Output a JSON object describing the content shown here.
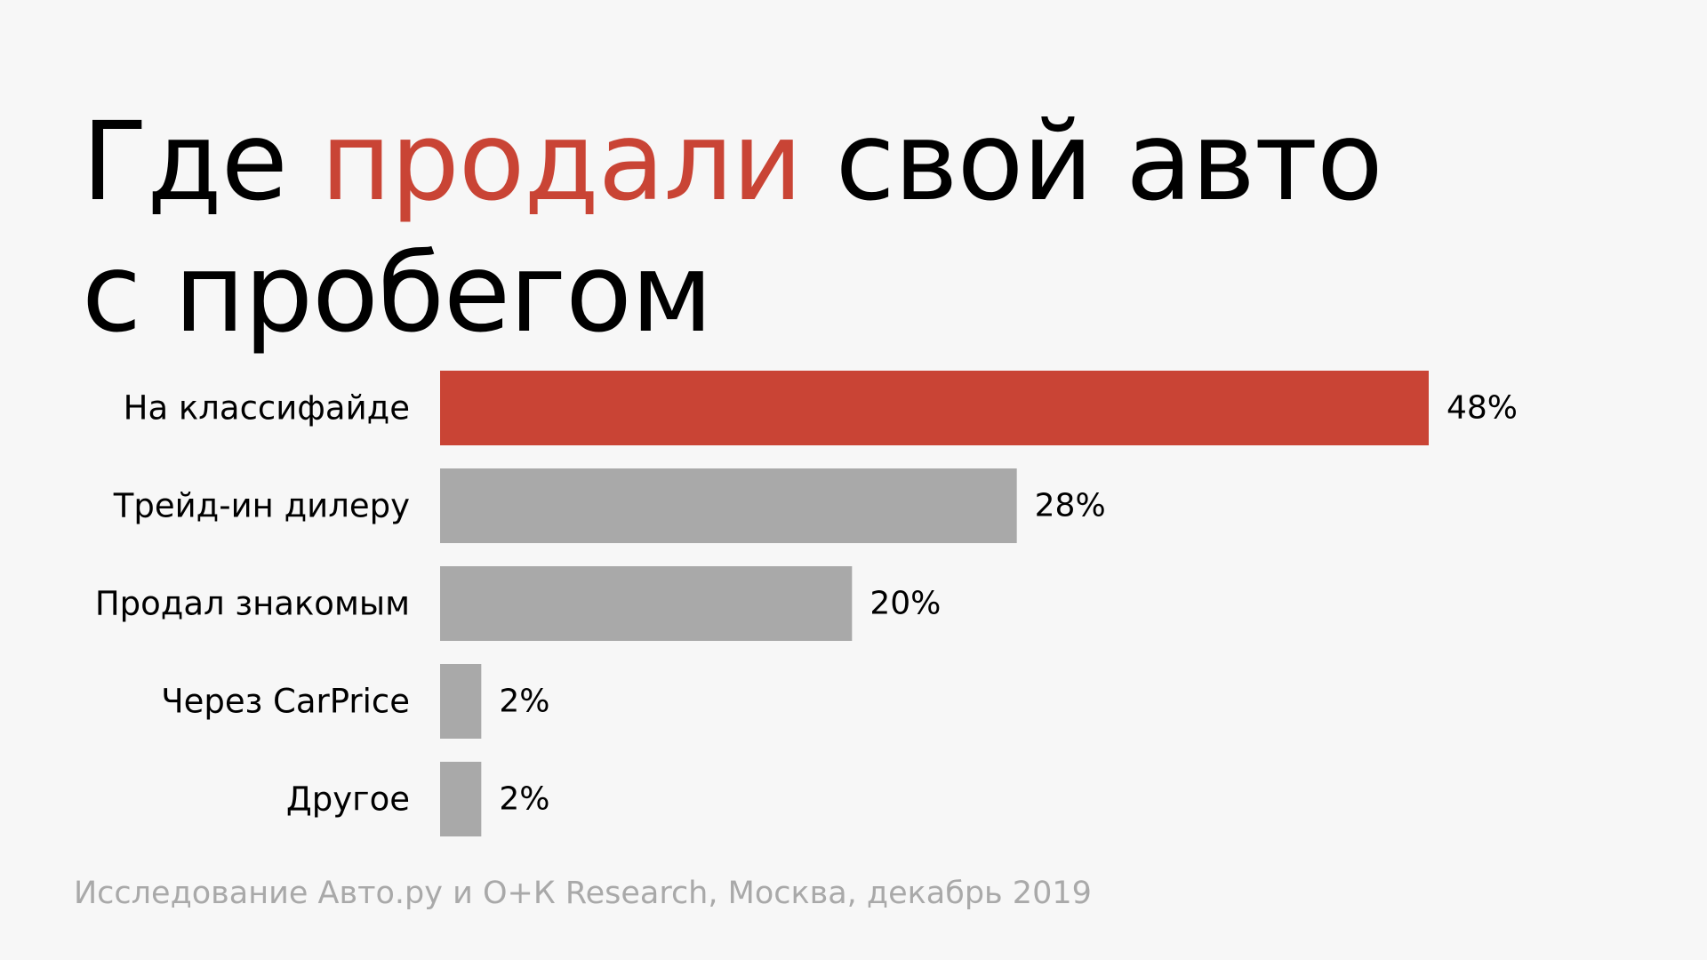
{
  "title": {
    "part1": "Где ",
    "highlight": "продали",
    "part2": " свой авто",
    "line2": "с пробегом"
  },
  "colors": {
    "highlight": "#c94435",
    "bar_default": "#a9a9a9",
    "background": "#f7f7f7"
  },
  "chart_data": {
    "type": "bar",
    "orientation": "horizontal",
    "categories": [
      "На классифайде",
      "Трейд-ин дилеру",
      "Продал знакомым",
      "Через CarPrice",
      "Другое"
    ],
    "values": [
      48,
      28,
      20,
      2,
      2
    ],
    "value_labels": [
      "48%",
      "28%",
      "20%",
      "2%",
      "2%"
    ],
    "unit": "%",
    "highlight_index": 0,
    "grid": false
  },
  "source": "Исследование Авто.ру и О+К Research, Москва, декабрь 2019"
}
